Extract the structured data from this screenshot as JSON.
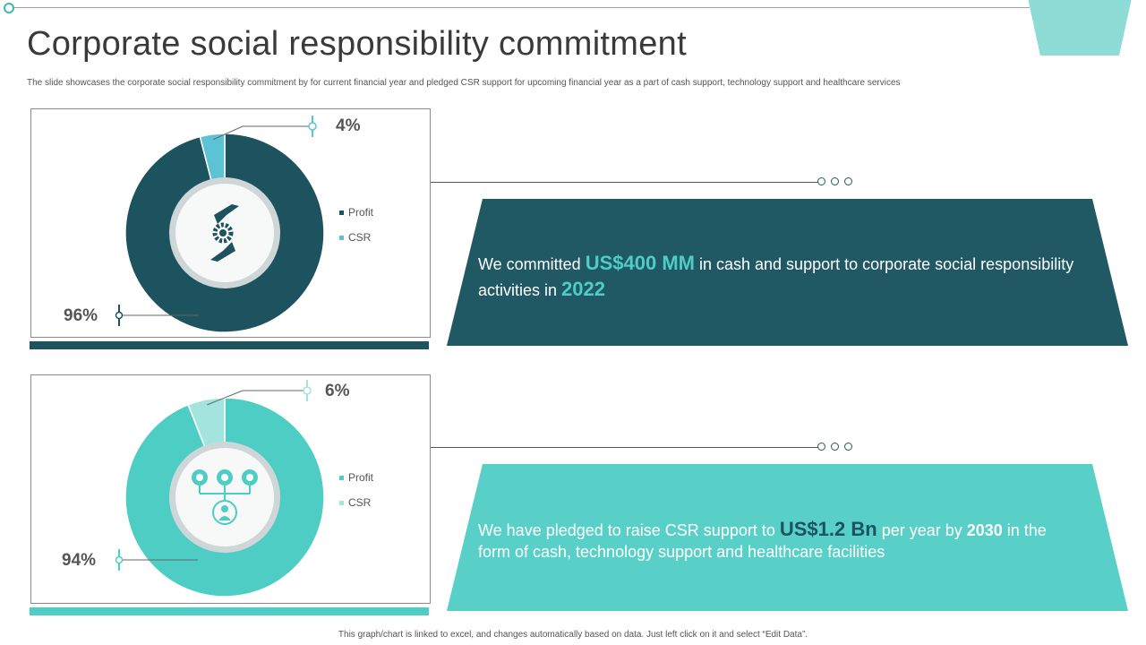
{
  "slide": {
    "title": "Corporate social responsibility commitment",
    "subtitle": "The slide showcases the corporate social responsibility commitment by for current financial year and pledged CSR support for upcoming financial year as a part of cash support, technology support and healthcare services",
    "footer": "This graph/chart is linked to excel, and changes automatically based on data. Just left click on it and select “Edit Data”."
  },
  "colors": {
    "dark_teal": "#1c535e",
    "teal": "#4ecdc4",
    "light_cyan": "#5cc3d4",
    "pale_teal": "#a4e4df"
  },
  "chart_data": [
    {
      "type": "pie",
      "variant": "donut",
      "categories": [
        "Profit",
        "CSR"
      ],
      "values": [
        96,
        4
      ],
      "value_labels": [
        "96%",
        "4%"
      ],
      "colors": [
        "#1c535e",
        "#5cc3d4"
      ],
      "legend": [
        "Profit",
        "CSR"
      ],
      "legend_position": "right",
      "center_icon": "hands-gear-icon"
    },
    {
      "type": "pie",
      "variant": "donut",
      "categories": [
        "Profit",
        "CSR"
      ],
      "values": [
        94,
        6
      ],
      "value_labels": [
        "94%",
        "6%"
      ],
      "colors": [
        "#4ecdc4",
        "#a4e4df"
      ],
      "legend": [
        "Profit",
        "CSR"
      ],
      "legend_position": "right",
      "center_icon": "org-network-icon"
    }
  ],
  "banners": [
    {
      "pre": "We committed ",
      "amount": "US$400 MM",
      "mid": " in cash and support to corporate social responsibility activities in ",
      "year": "2022",
      "post": ""
    },
    {
      "pre": "We have pledged to raise CSR support to ",
      "amount": "US$1.2 Bn",
      "mid": " per year by ",
      "year": "2030",
      "post": " in the form of cash, technology support and healthcare facilities"
    }
  ]
}
